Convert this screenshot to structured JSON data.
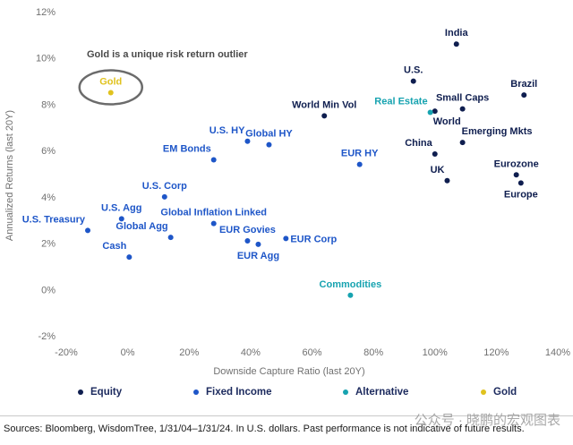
{
  "chart_data": {
    "type": "scatter",
    "xlabel": "Downside Capture Ratio (last 20Y)",
    "ylabel": "Annualized Returns (last 20Y)",
    "xlim": [
      -20,
      140
    ],
    "ylim": [
      -2,
      12
    ],
    "x_ticks": [
      "-20%",
      "0%",
      "20%",
      "40%",
      "60%",
      "80%",
      "100%",
      "120%",
      "140%"
    ],
    "y_ticks": [
      "-2%",
      "0%",
      "2%",
      "4%",
      "6%",
      "8%",
      "10%",
      "12%"
    ],
    "grid": false,
    "annotation": "Gold is a unique risk return outlier",
    "colors": {
      "Equity": "#0f1e4f",
      "Fixed Income": "#1e56c8",
      "Alternative": "#17a3b0",
      "Gold": "#e0c21e"
    },
    "legend": [
      "Equity",
      "Fixed Income",
      "Alternative",
      "Gold"
    ],
    "points": [
      {
        "label": "India",
        "x": 107,
        "y": 10.6,
        "category": "Equity",
        "label_pos": "top"
      },
      {
        "label": "U.S.",
        "x": 93,
        "y": 9.0,
        "category": "Equity",
        "label_pos": "top"
      },
      {
        "label": "Brazil",
        "x": 129,
        "y": 8.4,
        "category": "Equity",
        "label_pos": "top"
      },
      {
        "label": "Small Caps",
        "x": 109,
        "y": 7.8,
        "category": "Equity",
        "label_pos": "top"
      },
      {
        "label": "World",
        "x": 100,
        "y": 7.7,
        "category": "Equity",
        "label_pos": "below-right"
      },
      {
        "label": "World Min Vol",
        "x": 64,
        "y": 7.5,
        "category": "Equity",
        "label_pos": "top"
      },
      {
        "label": "Emerging Mkts",
        "x": 109,
        "y": 6.35,
        "category": "Equity",
        "label_pos": "right-up"
      },
      {
        "label": "China",
        "x": 100,
        "y": 5.85,
        "category": "Equity",
        "label_pos": "left-up"
      },
      {
        "label": "Eurozone",
        "x": 126.5,
        "y": 4.95,
        "category": "Equity",
        "label_pos": "top"
      },
      {
        "label": "UK",
        "x": 104,
        "y": 4.7,
        "category": "Equity",
        "label_pos": "left-up"
      },
      {
        "label": "Europe",
        "x": 128,
        "y": 4.6,
        "category": "Equity",
        "label_pos": "below"
      },
      {
        "label": "U.S. HY",
        "x": 39,
        "y": 6.4,
        "category": "Fixed Income",
        "label_pos": "left-up"
      },
      {
        "label": "Global HY",
        "x": 46,
        "y": 6.25,
        "category": "Fixed Income",
        "label_pos": "top"
      },
      {
        "label": "EM Bonds",
        "x": 28,
        "y": 5.6,
        "category": "Fixed Income",
        "label_pos": "left-up"
      },
      {
        "label": "EUR HY",
        "x": 75.5,
        "y": 5.4,
        "category": "Fixed Income",
        "label_pos": "top"
      },
      {
        "label": "U.S. Corp",
        "x": 12,
        "y": 4.0,
        "category": "Fixed Income",
        "label_pos": "top"
      },
      {
        "label": "U.S. Agg",
        "x": -2,
        "y": 3.05,
        "category": "Fixed Income",
        "label_pos": "top"
      },
      {
        "label": "Global Inflation Linked",
        "x": 28,
        "y": 2.85,
        "category": "Fixed Income",
        "label_pos": "top"
      },
      {
        "label": "U.S. Treasury",
        "x": -13,
        "y": 2.55,
        "category": "Fixed Income",
        "label_pos": "left-up"
      },
      {
        "label": "Global Agg",
        "x": 14,
        "y": 2.25,
        "category": "Fixed Income",
        "label_pos": "left-up"
      },
      {
        "label": "EUR Govies",
        "x": 39,
        "y": 2.1,
        "category": "Fixed Income",
        "label_pos": "top"
      },
      {
        "label": "EUR Agg",
        "x": 42.5,
        "y": 1.95,
        "category": "Fixed Income",
        "label_pos": "below"
      },
      {
        "label": "EUR Corp",
        "x": 51.5,
        "y": 2.2,
        "category": "Fixed Income",
        "label_pos": "right"
      },
      {
        "label": "Cash",
        "x": 0.5,
        "y": 1.4,
        "category": "Fixed Income",
        "label_pos": "left-up"
      },
      {
        "label": "Real Estate",
        "x": 98.5,
        "y": 7.65,
        "category": "Alternative",
        "label_pos": "left-up"
      },
      {
        "label": "Commodities",
        "x": 72.5,
        "y": -0.25,
        "category": "Alternative",
        "label_pos": "top"
      },
      {
        "label": "Gold",
        "x": -5.5,
        "y": 8.5,
        "category": "Gold",
        "label_pos": "top"
      }
    ]
  },
  "footer": {
    "source": "Sources: Bloomberg, WisdomTree, 1/31/04–1/31/24. In U.S. dollars. Past performance is not indicative of future results.",
    "watermark": "公众号 · 晓鹏的宏观图表"
  }
}
